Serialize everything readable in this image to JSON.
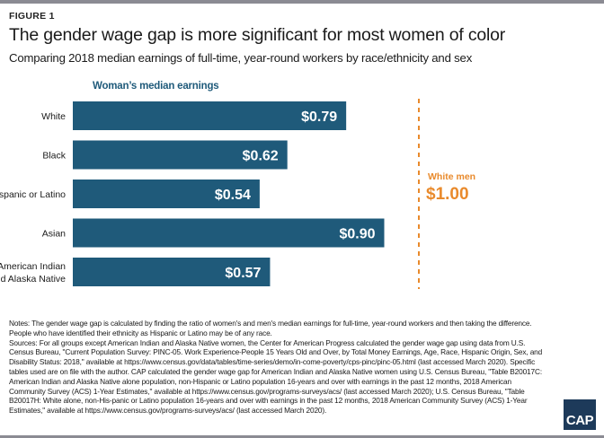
{
  "header": {
    "figure_label": "FIGURE 1",
    "title": "The gender wage gap is more significant for most women of color",
    "subtitle": "Comparing 2018 median earnings of full-time, year-round workers by race/ethnicity and sex"
  },
  "chart_data": {
    "type": "bar",
    "orientation": "horizontal",
    "series_label": "Woman’s median earnings",
    "categories": [
      "White",
      "Black",
      "Hispanic or Latino",
      "Asian",
      "American Indian and Alaska Native"
    ],
    "category_lines": [
      [
        "White"
      ],
      [
        "Black"
      ],
      [
        "Hispanic or Latino"
      ],
      [
        "Asian"
      ],
      [
        "American Indian",
        "and Alaska Native"
      ]
    ],
    "values": [
      0.79,
      0.62,
      0.54,
      0.9,
      0.57
    ],
    "data_labels": [
      "$0.79",
      "$0.62",
      "$0.54",
      "$0.90",
      "$0.57"
    ],
    "xlim": [
      0,
      1.0
    ],
    "reference_line": {
      "value": 1.0,
      "label": "White men",
      "value_label": "$1.00",
      "color": "#e98a2c",
      "style": "dashed"
    },
    "bar_color": "#1f5a7a",
    "grid": false
  },
  "notes": {
    "notes": "Notes: The gender wage gap is calculated by finding the ratio of women's and men's median earnings for full-time, year-round workers and then taking the difference. People who have identified their ethnicity as Hispanic or Latino may be of any race.",
    "sources": "Sources: For all groups except American Indian and Alaska Native women, the Center for American Progress calculated the gender wage gap using data from U.S. Census Bureau, \"Current Population Survey: PINC-05. Work Experience-People 15 Years Old and Over, by Total Money Earnings, Age, Race, Hispanic Origin, Sex, and Disability Status: 2018,\" available at https://www.census.gov/data/tables/time-series/demo/in-come-poverty/cps-pinc/pinc-05.html (last accessed March 2020). Specific tables used are on file with the author. CAP calculated the gender wage gap for American Indian and Alaska Native women using U.S. Census Bureau, \"Table B20017C: American Indian and Alaska Native alone population, non-Hispanic or Latino population 16-years and over with earnings in the past 12 months, 2018 American Community Survey (ACS) 1-Year Estimates,\" available at https://www.census.gov/programs-surveys/acs/ (last accessed March 2020); U.S. Census Bureau, \"Table B20017H: White alone, non-His-panic or Latino population 16-years and over with earnings in the past 12 months, 2018 American Community Survey (ACS) 1-Year Estimates,\" available at https://www.census.gov/programs-surveys/acs/ (last accessed March 2020)."
  },
  "logo": {
    "text": "CAP"
  }
}
